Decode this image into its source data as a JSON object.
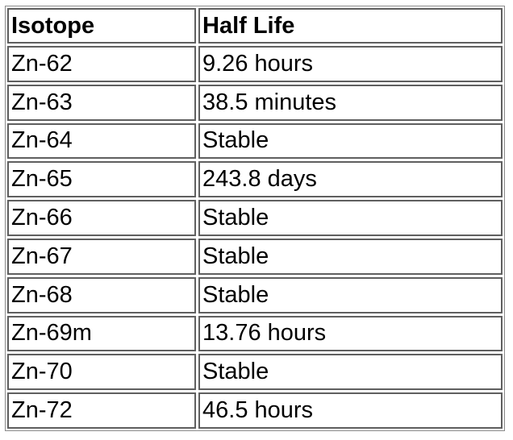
{
  "table": {
    "headers": [
      "Isotope",
      "Half Life"
    ],
    "rows": [
      [
        "Zn-62",
        "9.26 hours"
      ],
      [
        "Zn-63",
        "38.5 minutes"
      ],
      [
        "Zn-64",
        "Stable"
      ],
      [
        "Zn-65",
        "243.8 days"
      ],
      [
        "Zn-66",
        "Stable"
      ],
      [
        "Zn-67",
        "Stable"
      ],
      [
        "Zn-68",
        "Stable"
      ],
      [
        "Zn-69m",
        "13.76 hours"
      ],
      [
        "Zn-70",
        "Stable"
      ],
      [
        "Zn-72",
        "46.5 hours"
      ]
    ]
  }
}
